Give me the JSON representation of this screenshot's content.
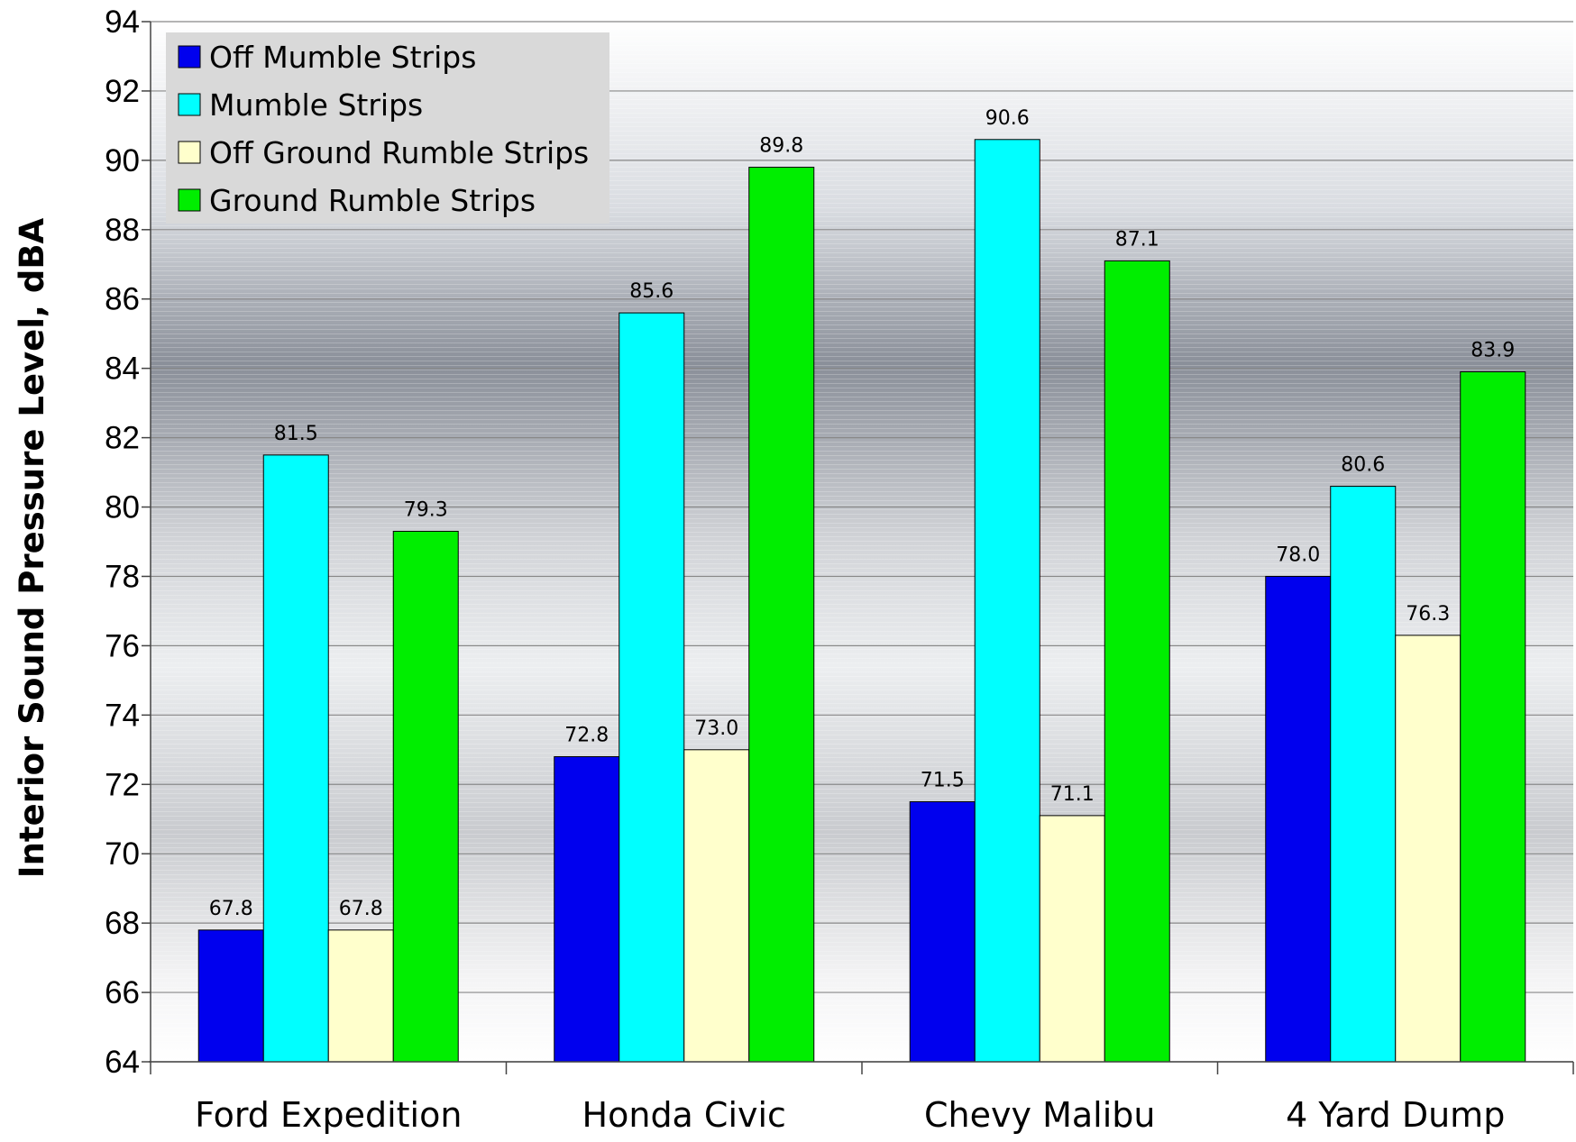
{
  "chart_data": {
    "type": "bar",
    "title": "",
    "xlabel": "",
    "ylabel": "Interior  Sound Pressure Level, dBA",
    "ylim": [
      64,
      94
    ],
    "yticks": [
      "64",
      "66",
      "68",
      "70",
      "72",
      "74",
      "76",
      "78",
      "80",
      "82",
      "84",
      "86",
      "88",
      "90",
      "92",
      "94"
    ],
    "grid": true,
    "legend_position": "top-left",
    "categories": [
      "Ford Expedition",
      "Honda Civic",
      "Chevy Malibu",
      "4 Yard Dump"
    ],
    "series": [
      {
        "name": "Off Mumble Strips",
        "color": "#0000EE",
        "values": [
          67.8,
          72.8,
          71.5,
          78.0
        ],
        "labels": [
          "67.8",
          "72.8",
          "71.5",
          "78.0"
        ]
      },
      {
        "name": "Mumble Strips",
        "color": "#00FFFF",
        "values": [
          81.5,
          85.6,
          90.6,
          80.6
        ],
        "labels": [
          "81.5",
          "85.6",
          "90.6",
          "80.6"
        ]
      },
      {
        "name": "Off Ground Rumble Strips",
        "color": "#FFFFCC",
        "values": [
          67.8,
          73.0,
          71.1,
          76.3
        ],
        "labels": [
          "67.8",
          "73.0",
          "71.1",
          "76.3"
        ]
      },
      {
        "name": "Ground Rumble Strips",
        "color": "#00EE00",
        "values": [
          79.3,
          89.8,
          87.1,
          83.9
        ],
        "labels": [
          "79.3",
          "89.8",
          "87.1",
          "83.9"
        ]
      }
    ]
  }
}
